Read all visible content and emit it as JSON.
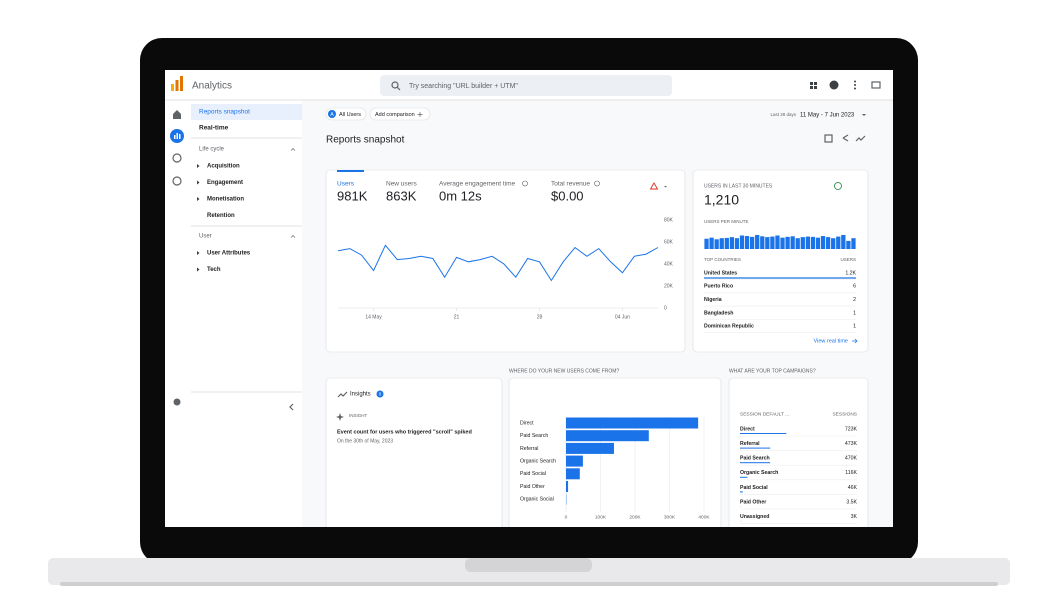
{
  "header": {
    "app_name": "Analytics",
    "search_placeholder": "Try searching \"URL builder + UTM\""
  },
  "nav": {
    "items": [
      "Reports snapshot",
      "Real-time"
    ],
    "sections": [
      {
        "title": "Life cycle",
        "items": [
          "Acquisition",
          "Engagement",
          "Monetisation",
          "Retention"
        ]
      },
      {
        "title": "User",
        "items": [
          "User Attributes",
          "Tech"
        ]
      }
    ]
  },
  "toolbar": {
    "segment_badge": "A",
    "segment": "All Users",
    "add_comparison": "Add comparison",
    "date_range_label": "Last 28 days",
    "date_range": "11 May - 7 Jun 2023"
  },
  "page_title": "Reports snapshot",
  "metrics": [
    {
      "label": "Users",
      "value": "981K"
    },
    {
      "label": "New users",
      "value": "863K"
    },
    {
      "label": "Average engagement time",
      "value": "0m 12s"
    },
    {
      "label": "Total revenue",
      "value": "$0.00"
    }
  ],
  "chart_data": [
    {
      "type": "line",
      "categories": [
        null,
        null,
        null,
        "14 May",
        null,
        null,
        null,
        null,
        null,
        null,
        "21",
        null,
        null,
        null,
        null,
        null,
        null,
        "28",
        null,
        null,
        null,
        null,
        null,
        null,
        "04 Jun",
        null,
        null,
        null
      ],
      "series": [
        {
          "name": "Users",
          "color": "#1a73e8",
          "values": [
            52000,
            54000,
            48000,
            34000,
            57000,
            44000,
            45000,
            47000,
            45000,
            28000,
            46000,
            42000,
            44000,
            47000,
            40000,
            28000,
            45000,
            42000,
            25000,
            42000,
            55000,
            47000,
            54000,
            42000,
            32000,
            47000,
            49000,
            55000
          ]
        }
      ],
      "ylim": [
        0,
        80000
      ],
      "yticks": [
        0,
        {
          "value": 20000,
          "label": "20K"
        },
        {
          "value": 40000,
          "label": "40K"
        },
        {
          "value": 60000,
          "label": "60K"
        },
        {
          "value": 80000,
          "label": "80K"
        }
      ],
      "grid": false
    },
    {
      "type": "bar",
      "title": "USERS PER MINUTE",
      "color": "#1a73e8",
      "values": [
        38,
        42,
        36,
        40,
        41,
        44,
        40,
        50,
        48,
        45,
        52,
        47,
        44,
        46,
        50,
        42,
        45,
        47,
        40,
        44,
        46,
        45,
        42,
        48,
        44,
        40,
        46,
        52,
        30,
        40
      ]
    },
    {
      "type": "hbar",
      "title": "WHERE DO YOUR NEW USERS COME FROM?",
      "color": "#1a73e8",
      "categories": [
        "Direct",
        "Paid Search",
        "Referral",
        "Organic Search",
        "Paid Social",
        "Paid Other",
        "Organic Social"
      ],
      "values": [
        383000,
        240000,
        139000,
        49000,
        40000,
        6000,
        1000
      ],
      "xlim": [
        0,
        400000
      ],
      "xticks": [
        0,
        {
          "value": 100000,
          "label": "100K"
        },
        {
          "value": 200000,
          "label": "200K"
        },
        {
          "value": 300000,
          "label": "300K"
        },
        {
          "value": 400000,
          "label": "400K"
        }
      ],
      "grid": true
    }
  ],
  "realtime": {
    "title": "USERS IN LAST 30 MINUTES",
    "value": "1,210",
    "countries_header": [
      "TOP COUNTRIES",
      "USERS"
    ],
    "countries": [
      [
        "United States",
        "1.2K"
      ],
      [
        "Puerto Rico",
        "6"
      ],
      [
        "Nigeria",
        "2"
      ],
      [
        "Bangladesh",
        "1"
      ],
      [
        "Dominican Republic",
        "1"
      ]
    ],
    "link": "View real time"
  },
  "insights": {
    "title": "Insights",
    "count": "0",
    "label": "INSIGHT",
    "headline": "Event count for users who triggered \"scroll\" spiked",
    "date": "On the 30th of May, 2023"
  },
  "campaigns": {
    "title": "WHAT ARE YOUR TOP CAMPAIGNS?",
    "header": [
      "SESSION DEFAULT ...",
      "SESSIONS"
    ],
    "rows": [
      [
        "Direct",
        "723K"
      ],
      [
        "Referral",
        "473K"
      ],
      [
        "Paid Search",
        "470K"
      ],
      [
        "Organic Search",
        "116K"
      ],
      [
        "Paid Social",
        "46K"
      ],
      [
        "Paid Other",
        "3.5K"
      ],
      [
        "Unassigned",
        "3K"
      ]
    ],
    "sessions": [
      723000,
      473000,
      470000,
      116000,
      46000,
      3500,
      3000
    ]
  }
}
